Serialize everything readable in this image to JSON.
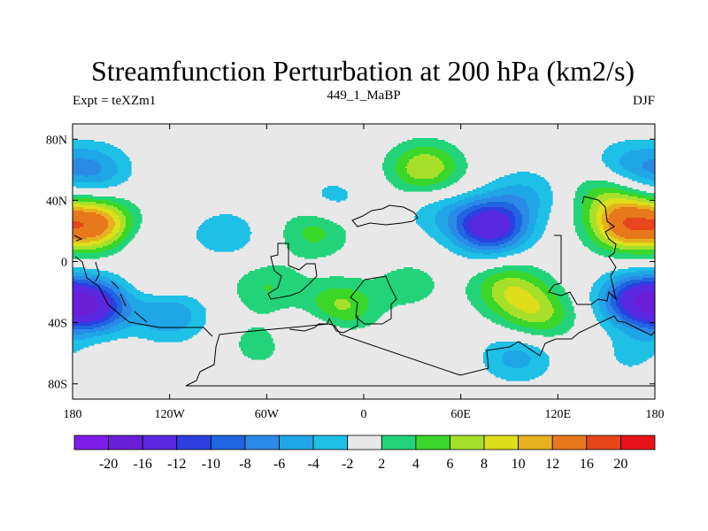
{
  "chart_data": {
    "type": "heatmap",
    "title": "Streamfunction Perturbation at 200 hPa (km2/s)",
    "left_label": "Expt = teXZm1",
    "center_label": "449_1_MaBP",
    "right_label": "DJF",
    "x_range": [
      -180,
      180
    ],
    "y_range": [
      -90,
      90
    ],
    "x_ticks": [
      {
        "value": -180,
        "label": "180"
      },
      {
        "value": -120,
        "label": "120W"
      },
      {
        "value": -60,
        "label": "60W"
      },
      {
        "value": 0,
        "label": "0"
      },
      {
        "value": 60,
        "label": "60E"
      },
      {
        "value": 120,
        "label": "120E"
      },
      {
        "value": 180,
        "label": "180"
      }
    ],
    "y_ticks": [
      {
        "value": 80,
        "label": "80N"
      },
      {
        "value": 40,
        "label": "40N"
      },
      {
        "value": 0,
        "label": "0"
      },
      {
        "value": -40,
        "label": "40S"
      },
      {
        "value": -80,
        "label": "80S"
      }
    ],
    "levels": [
      -20,
      -16,
      -12,
      -10,
      -8,
      -6,
      -4,
      -2,
      2,
      4,
      6,
      8,
      10,
      12,
      16,
      20
    ],
    "colors": [
      "#7f1de8",
      "#6a1fd6",
      "#5a28e0",
      "#2c3fe0",
      "#1f66e0",
      "#2a8ae6",
      "#1fa6e6",
      "#1ec0e6",
      "#e8e8e8",
      "#22d37a",
      "#3ad62a",
      "#a6e02a",
      "#dede1a",
      "#e6b01e",
      "#e8781c",
      "#e6461a",
      "#e6141a"
    ],
    "features": [
      {
        "lon": -167,
        "lat": 60,
        "value": -6
      },
      {
        "lon": 163,
        "lat": 62,
        "value": -5
      },
      {
        "lon": 38,
        "lat": 61,
        "value": 8
      },
      {
        "lon": -165,
        "lat": 24,
        "value": 13
      },
      {
        "lon": 163,
        "lat": 24,
        "value": 14
      },
      {
        "lon": 78,
        "lat": 23,
        "value": -15
      },
      {
        "lon": -85,
        "lat": 18,
        "value": -3.5
      },
      {
        "lon": -30,
        "lat": 20,
        "value": 5
      },
      {
        "lon": 45,
        "lat": 33,
        "value": -3
      },
      {
        "lon": -168,
        "lat": -29,
        "value": -14
      },
      {
        "lon": 168,
        "lat": -25,
        "value": -12
      },
      {
        "lon": 90,
        "lat": -18,
        "value": 7
      },
      {
        "lon": 108,
        "lat": -35,
        "value": 6.5
      },
      {
        "lon": -15,
        "lat": -30,
        "value": 7
      },
      {
        "lon": -60,
        "lat": -17,
        "value": 4
      },
      {
        "lon": -120,
        "lat": -35,
        "value": -6
      },
      {
        "lon": 28,
        "lat": -15,
        "value": 3
      },
      {
        "lon": -125,
        "lat": -10,
        "value": 2.5
      },
      {
        "lon": -63,
        "lat": -54,
        "value": 3
      },
      {
        "lon": -30,
        "lat": -46,
        "value": -3.5
      },
      {
        "lon": 95,
        "lat": -62,
        "value": -5
      },
      {
        "lon": 172,
        "lat": -62,
        "value": -4
      },
      {
        "lon": -176,
        "lat": -68,
        "value": 2.5
      },
      {
        "lon": -135,
        "lat": 10,
        "value": -2.5
      },
      {
        "lon": 100,
        "lat": 44,
        "value": -4
      },
      {
        "lon": 150,
        "lat": 45,
        "value": 5
      },
      {
        "lon": -20,
        "lat": 40,
        "value": -3
      }
    ]
  }
}
